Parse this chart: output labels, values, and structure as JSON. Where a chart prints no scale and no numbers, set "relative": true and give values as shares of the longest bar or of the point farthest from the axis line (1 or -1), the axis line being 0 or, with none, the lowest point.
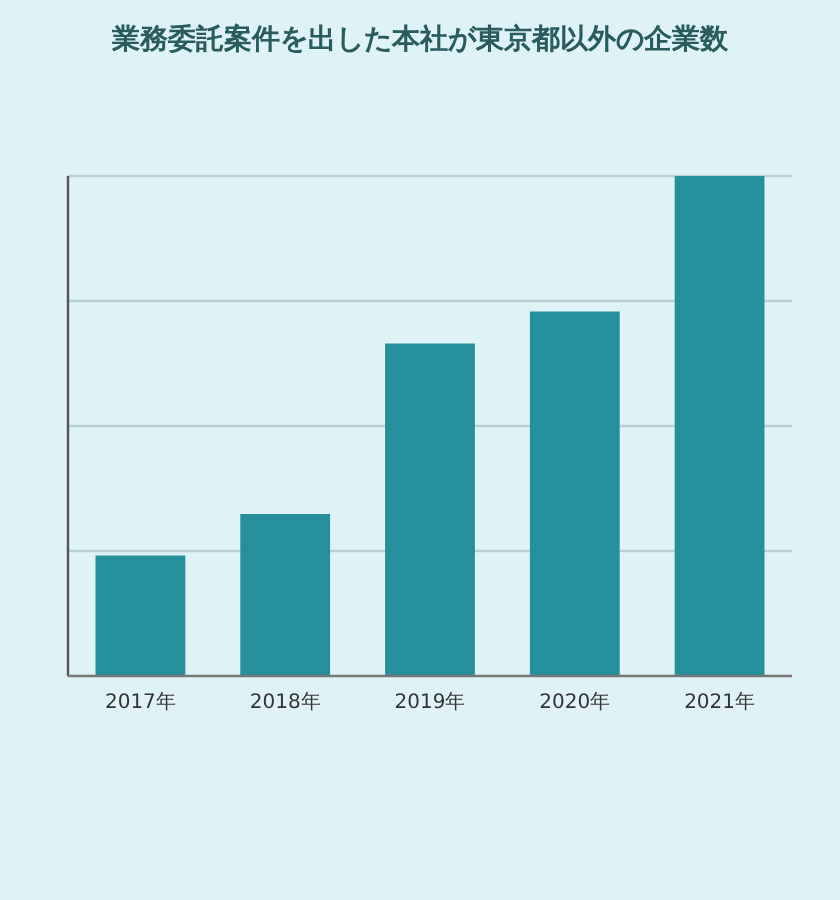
{
  "chart_data": {
    "type": "bar",
    "title": "業務委託案件を出した本社が東京都以外の企業数",
    "categories": [
      "2017年",
      "2018年",
      "2019年",
      "2020年",
      "2021年"
    ],
    "values": [
      0.241,
      0.324,
      0.665,
      0.729,
      1
    ],
    "color": "#258f9c",
    "relative": true,
    "grid": "y"
  }
}
